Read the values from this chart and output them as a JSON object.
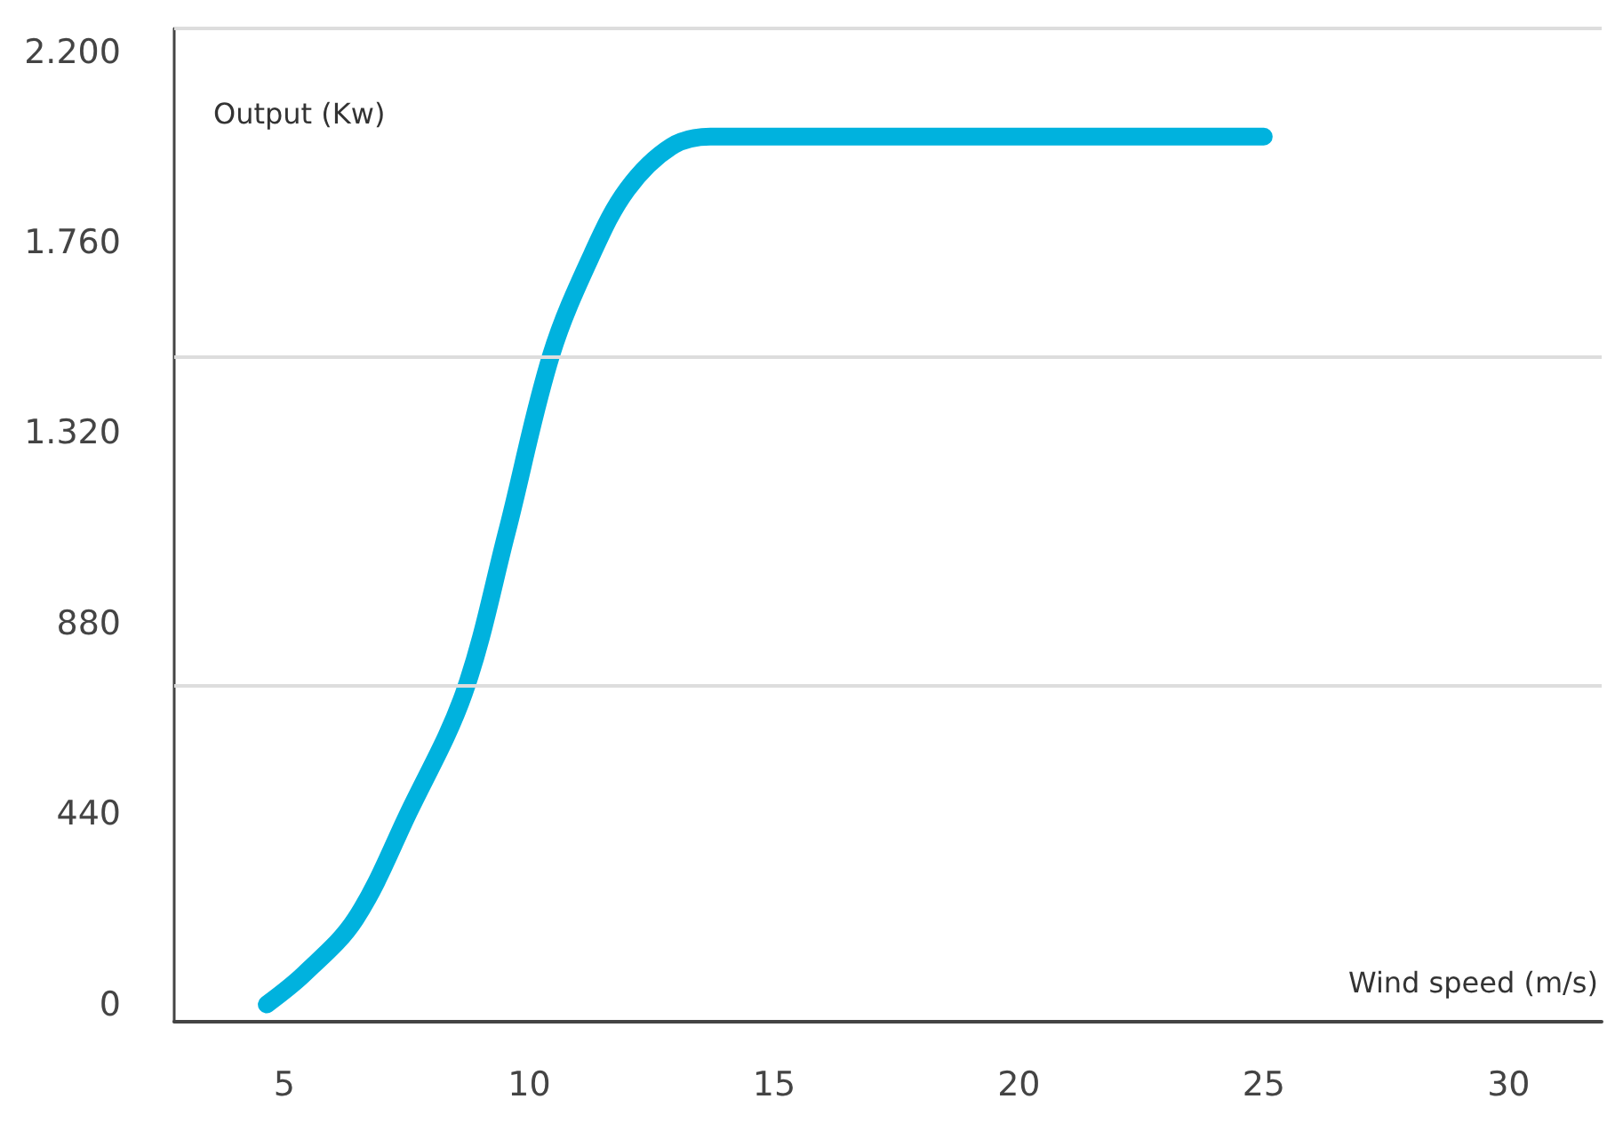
{
  "chart_data": {
    "type": "line",
    "xlabel": "Wind speed (m/s)",
    "ylabel": "Output (Kw)",
    "x": [
      4.64,
      5.4,
      6.45,
      7.54,
      8.67,
      9.54,
      10.45,
      11.29,
      12.0,
      12.9,
      13.7,
      15,
      20,
      25
    ],
    "series": [
      {
        "color": "#00b2de",
        "values": [
          0,
          70,
          197,
          444,
          720,
          1090,
          1501,
          1735,
          1883,
          1982,
          2005,
          2005,
          2005,
          2005
        ]
      }
    ],
    "xlim": [
      2.75,
      31.9
    ],
    "xticks": [
      5,
      10,
      15,
      20,
      25,
      30
    ],
    "ylim": [
      -40,
      2255
    ],
    "yticks": [
      0,
      440,
      880,
      {
        "value": 1320,
        "label": "1.320"
      },
      {
        "value": 1760,
        "label": "1.760"
      },
      {
        "value": 2200,
        "label": "2.200"
      }
    ],
    "ref_lines": [
      {
        "axis": "y",
        "value": 735,
        "color": "#dddddd"
      },
      {
        "axis": "y",
        "value": 1495,
        "color": "#dddddd"
      },
      {
        "axis": "y",
        "value": 2255,
        "color": "#dddddd"
      }
    ],
    "grid": false,
    "line_style": "solid"
  }
}
